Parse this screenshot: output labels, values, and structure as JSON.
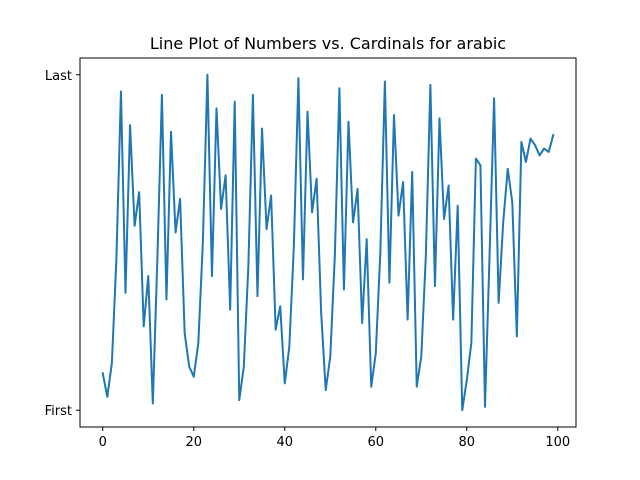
{
  "chart_data": {
    "type": "line",
    "title": "Line Plot of Numbers vs. Cardinals for arabic",
    "xlabel": "",
    "ylabel": "",
    "xlim": [
      -5,
      104
    ],
    "ylim": [
      -0.05,
      1.05
    ],
    "x_ticks": [
      0,
      20,
      40,
      60,
      80,
      100
    ],
    "y_ticks": [
      {
        "value": 0,
        "label": "First"
      },
      {
        "value": 1,
        "label": "Last"
      }
    ],
    "grid": false,
    "legend": "none",
    "series": [
      {
        "color": "#1f77b4",
        "x": [
          0,
          1,
          2,
          3,
          4,
          5,
          6,
          7,
          8,
          9,
          10,
          11,
          12,
          13,
          14,
          15,
          16,
          17,
          18,
          19,
          20,
          21,
          22,
          23,
          24,
          25,
          26,
          27,
          28,
          29,
          30,
          31,
          32,
          33,
          34,
          35,
          36,
          37,
          38,
          39,
          40,
          41,
          42,
          43,
          44,
          45,
          46,
          47,
          48,
          49,
          50,
          51,
          52,
          53,
          54,
          55,
          56,
          57,
          58,
          59,
          60,
          61,
          62,
          63,
          64,
          65,
          66,
          67,
          68,
          69,
          70,
          71,
          72,
          73,
          74,
          75,
          76,
          77,
          78,
          79,
          80,
          81,
          82,
          83,
          84,
          85,
          86,
          87,
          88,
          89,
          90,
          91,
          92,
          93,
          94,
          95,
          96,
          97,
          98,
          99
        ],
        "y": [
          0.11,
          0.04,
          0.14,
          0.45,
          0.95,
          0.35,
          0.85,
          0.55,
          0.65,
          0.25,
          0.4,
          0.02,
          0.45,
          0.94,
          0.33,
          0.83,
          0.53,
          0.63,
          0.23,
          0.13,
          0.1,
          0.2,
          0.5,
          1.0,
          0.4,
          0.9,
          0.6,
          0.7,
          0.3,
          0.92,
          0.03,
          0.13,
          0.43,
          0.94,
          0.34,
          0.84,
          0.54,
          0.64,
          0.24,
          0.31,
          0.08,
          0.19,
          0.49,
          0.99,
          0.39,
          0.89,
          0.59,
          0.69,
          0.29,
          0.06,
          0.16,
          0.46,
          0.96,
          0.36,
          0.86,
          0.56,
          0.66,
          0.26,
          0.51,
          0.07,
          0.17,
          0.47,
          0.98,
          0.38,
          0.88,
          0.58,
          0.68,
          0.27,
          0.71,
          0.07,
          0.16,
          0.46,
          0.97,
          0.37,
          0.87,
          0.57,
          0.67,
          0.27,
          0.61,
          0.0,
          0.09,
          0.2,
          0.75,
          0.73,
          0.01,
          0.46,
          0.93,
          0.32,
          0.56,
          0.72,
          0.62,
          0.22,
          0.8,
          0.74,
          0.81,
          0.79,
          0.76,
          0.78,
          0.77,
          0.82
        ]
      }
    ]
  }
}
